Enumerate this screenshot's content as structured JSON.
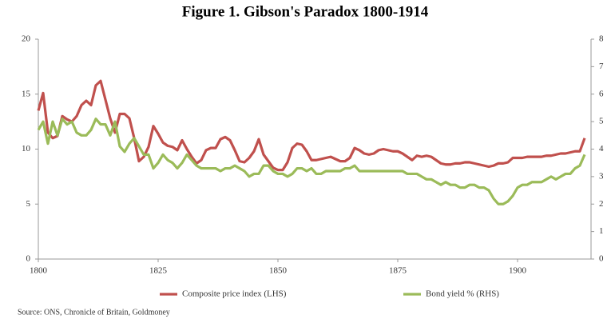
{
  "chart_data": {
    "type": "line",
    "title": "Figure 1. Gibson's Paradox 1800-1914",
    "source": "Source: ONS, Chronicle of Britain, Goldmoney",
    "x": [
      1800,
      1801,
      1802,
      1803,
      1804,
      1805,
      1806,
      1807,
      1808,
      1809,
      1810,
      1811,
      1812,
      1813,
      1814,
      1815,
      1816,
      1817,
      1818,
      1819,
      1820,
      1821,
      1822,
      1823,
      1824,
      1825,
      1826,
      1827,
      1828,
      1829,
      1830,
      1831,
      1832,
      1833,
      1834,
      1835,
      1836,
      1837,
      1838,
      1839,
      1840,
      1841,
      1842,
      1843,
      1844,
      1845,
      1846,
      1847,
      1848,
      1849,
      1850,
      1851,
      1852,
      1853,
      1854,
      1855,
      1856,
      1857,
      1858,
      1859,
      1860,
      1861,
      1862,
      1863,
      1864,
      1865,
      1866,
      1867,
      1868,
      1869,
      1870,
      1871,
      1872,
      1873,
      1874,
      1875,
      1876,
      1877,
      1878,
      1879,
      1880,
      1881,
      1882,
      1883,
      1884,
      1885,
      1886,
      1887,
      1888,
      1889,
      1890,
      1891,
      1892,
      1893,
      1894,
      1895,
      1896,
      1897,
      1898,
      1899,
      1900,
      1901,
      1902,
      1903,
      1904,
      1905,
      1906,
      1907,
      1908,
      1909,
      1910,
      1911,
      1912,
      1913,
      1914
    ],
    "series": [
      {
        "name": "Composite price index (LHS)",
        "color": "#c0504d",
        "axis": "y",
        "values": [
          13.5,
          15.1,
          11.5,
          11.0,
          11.2,
          13.0,
          12.7,
          12.5,
          13.0,
          14.0,
          14.4,
          14.0,
          15.8,
          16.2,
          14.5,
          12.8,
          11.5,
          13.2,
          13.2,
          12.8,
          11.0,
          8.9,
          9.3,
          10.2,
          12.1,
          11.4,
          10.6,
          10.3,
          10.2,
          9.9,
          10.8,
          10.0,
          9.3,
          8.7,
          9.0,
          9.9,
          10.1,
          10.1,
          10.9,
          11.1,
          10.8,
          9.9,
          8.9,
          8.8,
          9.2,
          9.8,
          10.9,
          9.5,
          8.9,
          8.3,
          8.1,
          8.1,
          8.8,
          10.1,
          10.5,
          10.4,
          9.8,
          9.0,
          9.0,
          9.1,
          9.2,
          9.3,
          9.1,
          8.9,
          8.9,
          9.2,
          10.1,
          9.9,
          9.6,
          9.5,
          9.6,
          9.9,
          10.0,
          9.9,
          9.8,
          9.8,
          9.6,
          9.3,
          9.0,
          9.4,
          9.3,
          9.4,
          9.3,
          9.0,
          8.7,
          8.6,
          8.6,
          8.7,
          8.7,
          8.8,
          8.8,
          8.7,
          8.6,
          8.5,
          8.4,
          8.5,
          8.7,
          8.7,
          8.8,
          9.2,
          9.2,
          9.2,
          9.3,
          9.3,
          9.3,
          9.3,
          9.4,
          9.4,
          9.5,
          9.6,
          9.6,
          9.7,
          9.8,
          9.8,
          11.0
        ]
      },
      {
        "name": "Bond yield % (RHS)",
        "color": "#9bbb59",
        "axis": "y2",
        "values": [
          4.7,
          5.0,
          4.2,
          5.0,
          4.5,
          5.1,
          4.9,
          5.0,
          4.6,
          4.5,
          4.5,
          4.7,
          5.1,
          4.9,
          4.9,
          4.5,
          5.0,
          4.1,
          3.9,
          4.2,
          4.4,
          4.1,
          3.8,
          3.8,
          3.3,
          3.5,
          3.8,
          3.6,
          3.5,
          3.3,
          3.5,
          3.8,
          3.6,
          3.4,
          3.3,
          3.3,
          3.3,
          3.3,
          3.2,
          3.3,
          3.3,
          3.4,
          3.3,
          3.2,
          3.0,
          3.1,
          3.1,
          3.4,
          3.4,
          3.2,
          3.1,
          3.1,
          3.0,
          3.1,
          3.3,
          3.3,
          3.2,
          3.3,
          3.1,
          3.1,
          3.2,
          3.2,
          3.2,
          3.2,
          3.3,
          3.3,
          3.4,
          3.2,
          3.2,
          3.2,
          3.2,
          3.2,
          3.2,
          3.2,
          3.2,
          3.2,
          3.2,
          3.1,
          3.1,
          3.1,
          3.0,
          2.9,
          2.9,
          2.8,
          2.7,
          2.8,
          2.7,
          2.7,
          2.6,
          2.6,
          2.7,
          2.7,
          2.6,
          2.6,
          2.5,
          2.2,
          2.0,
          2.0,
          2.1,
          2.3,
          2.6,
          2.7,
          2.7,
          2.8,
          2.8,
          2.8,
          2.9,
          3.0,
          2.9,
          3.0,
          3.1,
          3.1,
          3.3,
          3.4,
          3.8
        ]
      }
    ],
    "xlim": [
      1800,
      1914
    ],
    "xticks": [
      1800,
      1825,
      1850,
      1875,
      1900
    ],
    "ylim": [
      0,
      20
    ],
    "yticks": [
      0,
      5,
      10,
      15,
      20
    ],
    "y2lim": [
      0,
      8
    ],
    "y2ticks": [
      0,
      1,
      2,
      3,
      4,
      5,
      6,
      7,
      8
    ],
    "grid": false
  }
}
